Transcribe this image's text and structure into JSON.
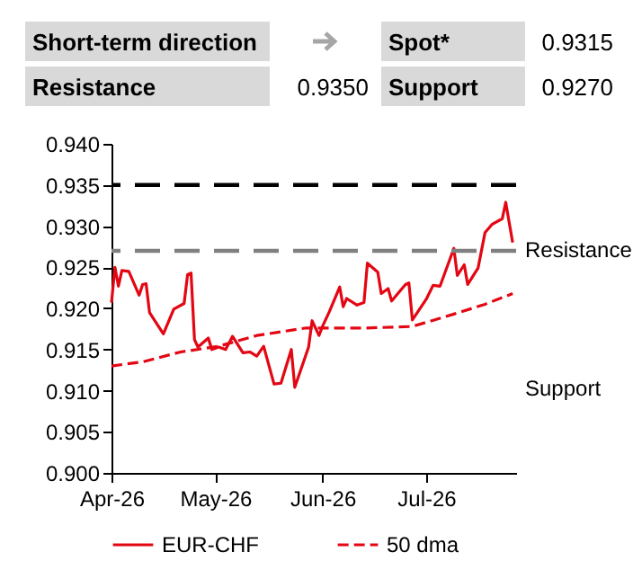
{
  "chart_data": [
    {
      "type": "other",
      "annotations": [
        "Short-term direction",
        "Spot*",
        "0.9315",
        "Resistance",
        "0.9350",
        "Support",
        "0.9270"
      ]
    },
    {
      "type": "line",
      "legend": "bottom",
      "grid": false,
      "marker": "none",
      "xlim": [
        "2026-04-01",
        "2026-07-27"
      ],
      "xticks": [
        {
          "value": "2026-04-01",
          "label": "Apr-26"
        },
        {
          "value": "2026-05-01",
          "label": "May-26"
        },
        {
          "value": "2026-06-01",
          "label": "Jun-26"
        },
        {
          "value": "2026-07-01",
          "label": "Jul-26"
        }
      ],
      "ylim": [
        0.9,
        0.94
      ],
      "yticks": [
        {
          "value": 0.9,
          "label": "0.900"
        },
        {
          "value": 0.905,
          "label": "0.905"
        },
        {
          "value": 0.91,
          "label": "0.910"
        },
        {
          "value": 0.915,
          "label": "0.915"
        },
        {
          "value": 0.92,
          "label": "0.920"
        },
        {
          "value": 0.925,
          "label": "0.925"
        },
        {
          "value": 0.93,
          "label": "0.930"
        },
        {
          "value": 0.935,
          "label": "0.935"
        },
        {
          "value": 0.94,
          "label": "0.940"
        }
      ],
      "ref_lines": [
        {
          "axis": "y",
          "value": 0.935,
          "color": "#000000",
          "line_style": "dashed"
        },
        {
          "axis": "y",
          "value": 0.927,
          "color": "#808080",
          "line_style": "dashed"
        }
      ],
      "annotations": [
        "Resistance",
        "Support"
      ],
      "series": [
        {
          "name": "EUR-CHF",
          "color": "#e30613",
          "line_style": "solid",
          "x": [
            "2026-04-01",
            "2026-04-02",
            "2026-04-03",
            "2026-04-04",
            "2026-04-06",
            "2026-04-09",
            "2026-04-10",
            "2026-04-11",
            "2026-04-12",
            "2026-04-16",
            "2026-04-19",
            "2026-04-22",
            "2026-04-23",
            "2026-04-24",
            "2026-04-25",
            "2026-04-26",
            "2026-04-29",
            "2026-04-30",
            "2026-05-02",
            "2026-05-04",
            "2026-05-06",
            "2026-05-09",
            "2026-05-11",
            "2026-05-13",
            "2026-05-15",
            "2026-05-18",
            "2026-05-20",
            "2026-05-23",
            "2026-05-24",
            "2026-05-28",
            "2026-05-29",
            "2026-05-31",
            "2026-06-01",
            "2026-06-03",
            "2026-06-06",
            "2026-06-07",
            "2026-06-08",
            "2026-06-11",
            "2026-06-13",
            "2026-06-14",
            "2026-06-17",
            "2026-06-18",
            "2026-06-20",
            "2026-06-21",
            "2026-06-25",
            "2026-06-26",
            "2026-06-27",
            "2026-07-01",
            "2026-07-03",
            "2026-07-05",
            "2026-07-09",
            "2026-07-10",
            "2026-07-12",
            "2026-07-13",
            "2026-07-16",
            "2026-07-18",
            "2026-07-20",
            "2026-07-23",
            "2026-07-24",
            "2026-07-26"
          ],
          "values": [
            0.9207,
            0.925,
            0.9227,
            0.9246,
            0.9245,
            0.9216,
            0.9229,
            0.923,
            0.9195,
            0.9169,
            0.9199,
            0.9206,
            0.9241,
            0.9243,
            0.9162,
            0.9153,
            0.9164,
            0.915,
            0.9153,
            0.915,
            0.9166,
            0.9146,
            0.9147,
            0.9142,
            0.9154,
            0.9108,
            0.9109,
            0.915,
            0.9104,
            0.9153,
            0.9185,
            0.9167,
            0.9178,
            0.9196,
            0.9226,
            0.9202,
            0.9212,
            0.9204,
            0.9207,
            0.9255,
            0.9244,
            0.9218,
            0.9224,
            0.9209,
            0.9229,
            0.9231,
            0.9186,
            0.9211,
            0.9228,
            0.9227,
            0.9273,
            0.924,
            0.9253,
            0.9229,
            0.9249,
            0.9292,
            0.9302,
            0.9309,
            0.9329,
            0.928
          ]
        },
        {
          "name": "50 dma",
          "color": "#e30613",
          "line_style": "dashed",
          "x": [
            "2026-04-01",
            "2026-04-10",
            "2026-04-21",
            "2026-05-02",
            "2026-05-13",
            "2026-05-27",
            "2026-06-13",
            "2026-06-27",
            "2026-07-09",
            "2026-07-18",
            "2026-07-26"
          ],
          "values": [
            0.913,
            0.9135,
            0.9147,
            0.9154,
            0.9167,
            0.9176,
            0.9176,
            0.9178,
            0.9193,
            0.9205,
            0.9218
          ]
        }
      ]
    }
  ]
}
